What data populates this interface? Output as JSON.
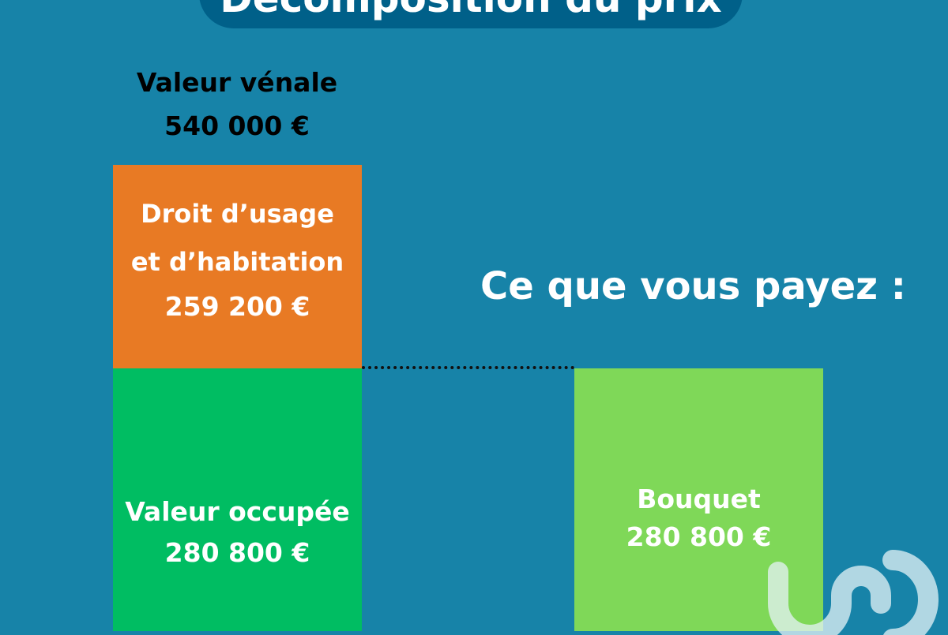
{
  "header": {
    "title": "Décomposition du prix"
  },
  "colors": {
    "background": "#1783a8",
    "title_bg": "#006089",
    "droit_usage": "#e87a24",
    "valeur_occupee": "#00bd62",
    "bouquet": "#7fd858"
  },
  "chart_data": {
    "type": "bar",
    "stacked": true,
    "total_label": "Valeur vénale",
    "total_value_text": "540 000 €",
    "total": 540000,
    "bars": [
      {
        "segments": [
          {
            "name": "Valeur occupée",
            "value": 280800,
            "value_text": "280 800 €"
          },
          {
            "name": "Droit d’usage et d’habitation",
            "name_line1": "Droit d’usage",
            "name_line2": "et d’habitation",
            "value": 259200,
            "value_text": "259 200 €"
          }
        ]
      },
      {
        "title": "Ce que vous payez :",
        "segments": [
          {
            "name": "Bouquet",
            "value": 280800,
            "value_text": "280 800 €"
          }
        ]
      }
    ],
    "grid": false,
    "legend": "none"
  },
  "logo": {
    "icon": "iad-logo-watermark"
  }
}
